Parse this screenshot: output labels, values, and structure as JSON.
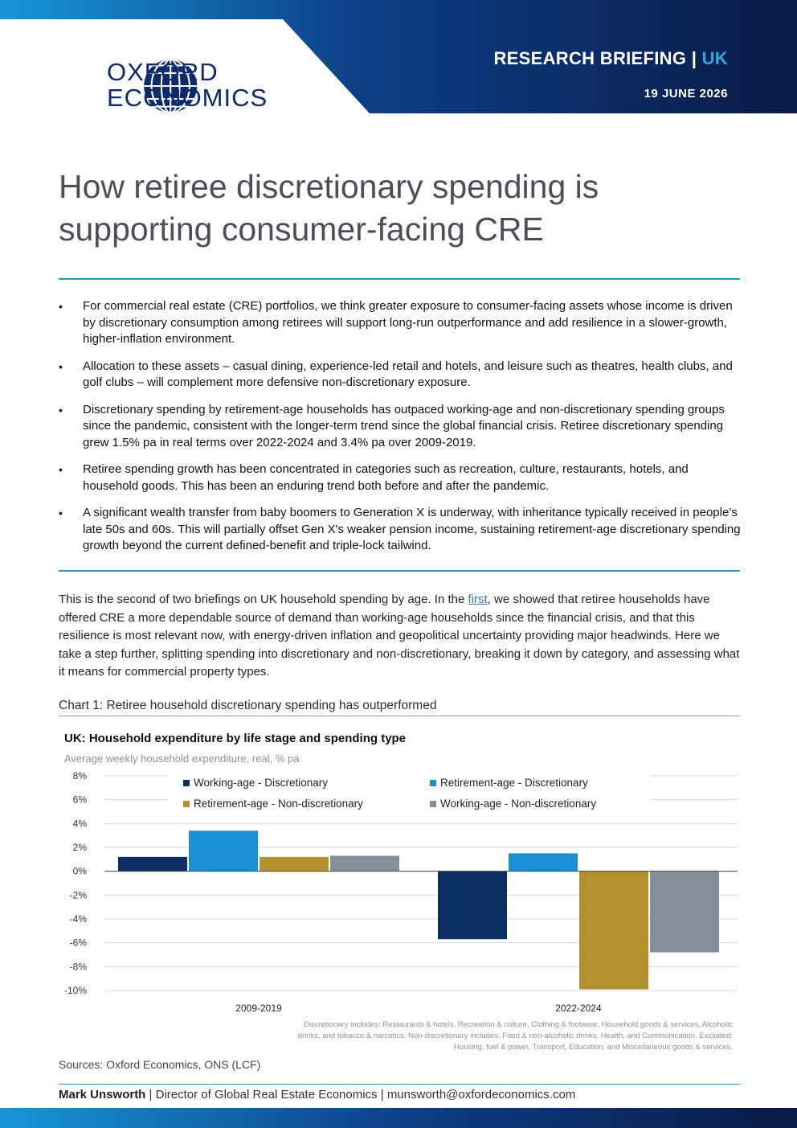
{
  "header": {
    "logo_line1": "OXFORD",
    "logo_line2": "ECONOMICS",
    "briefing_type": "RESEARCH BRIEFING",
    "separator": "|",
    "region": "UK",
    "date": "19 JUNE 2026"
  },
  "title": "How retiree discretionary spending is supporting consumer-facing CRE",
  "bullets": [
    "For commercial real estate (CRE) portfolios, we think greater exposure to consumer-facing assets whose income is driven by discretionary consumption among retirees will support long-run outperformance and add resilience in a slower-growth, higher-inflation environment.",
    "Allocation to these assets – casual dining, experience-led retail and hotels, and leisure such as theatres, health clubs, and golf clubs – will complement more defensive non-discretionary exposure.",
    "Discretionary spending by retirement-age households has outpaced working-age and non-discretionary spending groups since the pandemic, consistent with the longer-term trend since the global financial crisis. Retiree discretionary spending grew 1.5% pa in real terms over 2022-2024 and 3.4% pa over 2009-2019.",
    "Retiree spending growth has been concentrated in categories such as recreation, culture, restaurants, hotels, and household goods. This has been an enduring trend both before and after the pandemic.",
    "A significant wealth transfer from baby boomers to Generation X is underway, with inheritance typically received in people’s late 50s and 60s. This will partially offset Gen X's weaker pension income, sustaining retirement-age discretionary spending growth beyond the current defined-benefit and triple-lock tailwind."
  ],
  "intro": {
    "before_link": "This is the second of two briefings on UK household spending by age. In the ",
    "link_text": "first",
    "after_link": ", we showed that retiree households have offered CRE a more dependable source of demand than working-age households since the financial crisis, and that this resilience is most relevant now, with energy-driven inflation and geopolitical uncertainty providing major headwinds. Here we take a step further, splitting spending into discretionary and non-discretionary, breaking it down by category, and assessing what it means for commercial property types."
  },
  "chart_caption": "Chart 1: Retiree household discretionary spending has outperformed",
  "chart_data": {
    "type": "bar",
    "title": "UK: Household expenditure by life stage and spending type",
    "subtitle": "Average weekly household expenditure, real, % pa",
    "categories": [
      "2009-2019",
      "2022-2024"
    ],
    "series": [
      {
        "name": "Working-age - Discretionary",
        "values": [
          1.2,
          -5.7
        ],
        "color": "#0b2f63"
      },
      {
        "name": "Retirement-age - Discretionary",
        "values": [
          3.4,
          1.5
        ],
        "color": "#1a8fd3"
      },
      {
        "name": "Retirement-age - Non-discretionary",
        "values": [
          1.2,
          -9.9
        ],
        "color": "#b3912e"
      },
      {
        "name": "Working-age - Non-discretionary",
        "values": [
          1.3,
          -6.8
        ],
        "color": "#858f99"
      }
    ],
    "legend_order": [
      0,
      1,
      2,
      3
    ],
    "ylim": [
      -10,
      8
    ],
    "yticks": [
      8,
      6,
      4,
      2,
      0,
      -2,
      -4,
      -6,
      -8,
      -10
    ],
    "ytick_labels": [
      "8%",
      "6%",
      "4%",
      "2%",
      "0%",
      "-2%",
      "-4%",
      "-6%",
      "-8%",
      "-10%"
    ],
    "grid": true,
    "legend_position": "top"
  },
  "chart_note": "Discretionary includes: Restaurants & hotels, Recreation & culture, Clothing & footwear, Household goods & services, Alcoholic drinks, and tobacco & narcotics. Non-discretionary includes: Food & non-alcoholic drinks, Health, and Communication. Excluded: Housing, fuel & power, Transport, Education, and Miscellaneous goods & services.",
  "sources": "Sources: Oxford Economics, ONS (LCF)",
  "footer": {
    "author_name": "Mark Unsworth",
    "separator": "|",
    "author_role": "Director of Global Real Estate Economics",
    "email": "munsworth@oxfordeconomics.com"
  },
  "colors": {
    "navy": "#0a1f4e",
    "accent_blue": "#2fa7e0",
    "rule_blue": "#2a93c9"
  }
}
